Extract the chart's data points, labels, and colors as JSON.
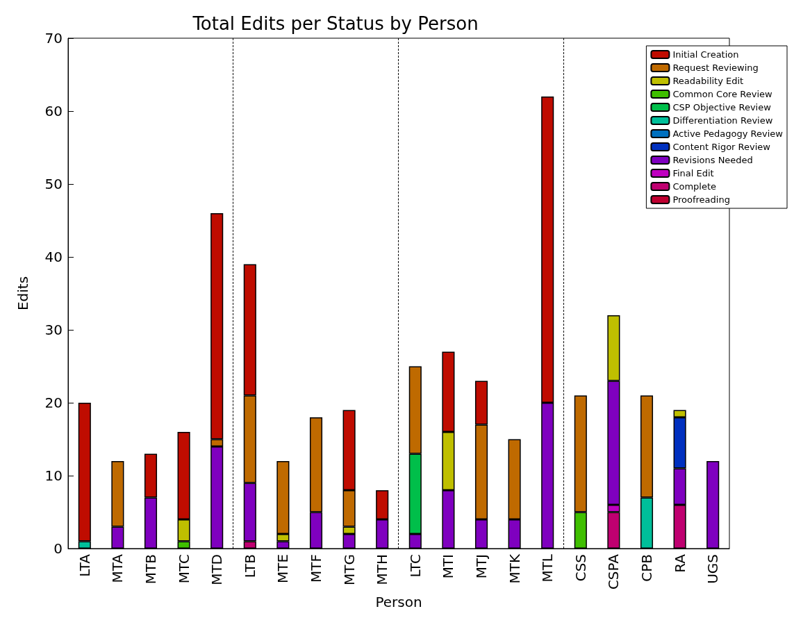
{
  "chart_data": {
    "type": "bar",
    "title": "Total Edits per Status by Person",
    "xlabel": "Person",
    "ylabel": "Edits",
    "stacked": true,
    "grid": false,
    "legend": "top right",
    "categories": [
      "LTA",
      "MTA",
      "MTB",
      "MTC",
      "MTD",
      "LTB",
      "MTE",
      "MTF",
      "MTG",
      "MTH",
      "LTC",
      "MTI",
      "MTJ",
      "MTK",
      "MTL",
      "CSS",
      "CSPA",
      "CPB",
      "RA",
      "UGS"
    ],
    "ylim": [
      0,
      70
    ],
    "yticks": [
      0,
      10,
      20,
      30,
      40,
      50,
      60,
      70
    ],
    "series": [
      {
        "name": "Proofreading",
        "color": "#bf0030",
        "values": [
          0,
          0,
          0,
          0,
          0,
          0,
          0,
          0,
          0,
          0,
          0,
          0,
          0,
          0,
          0,
          0,
          0,
          0,
          0,
          0
        ]
      },
      {
        "name": "Complete",
        "color": "#bf0070",
        "values": [
          0,
          0,
          0,
          0,
          0,
          1,
          0,
          0,
          0,
          0,
          0,
          0,
          0,
          0,
          0,
          0,
          5,
          0,
          6,
          0
        ]
      },
      {
        "name": "Final Edit",
        "color": "#bf00bf",
        "values": [
          0,
          0,
          0,
          0,
          0,
          0,
          0,
          0,
          0,
          0,
          0,
          0,
          0,
          0,
          0,
          0,
          1,
          0,
          0,
          0
        ]
      },
      {
        "name": "Revisions Needed",
        "color": "#7f00bf",
        "values": [
          0,
          3,
          7,
          0,
          14,
          8,
          1,
          5,
          2,
          4,
          2,
          8,
          4,
          4,
          20,
          0,
          17,
          0,
          5,
          12
        ]
      },
      {
        "name": "Content Rigor Review",
        "color": "#0030bf",
        "values": [
          0,
          0,
          0,
          0,
          0,
          0,
          0,
          0,
          0,
          0,
          0,
          0,
          0,
          0,
          0,
          0,
          0,
          0,
          7,
          0
        ]
      },
      {
        "name": "Active Pedagogy Review",
        "color": "#0070bf",
        "values": [
          0,
          0,
          0,
          0,
          0,
          0,
          0,
          0,
          0,
          0,
          0,
          0,
          0,
          0,
          0,
          0,
          0,
          0,
          0,
          0
        ]
      },
      {
        "name": "Differentiation Review",
        "color": "#00bf9a",
        "values": [
          1,
          0,
          0,
          0,
          0,
          0,
          0,
          0,
          0,
          0,
          0,
          0,
          0,
          0,
          0,
          0,
          0,
          7,
          0,
          0
        ]
      },
      {
        "name": "CSP Objective Review",
        "color": "#00bf4a",
        "values": [
          0,
          0,
          0,
          0,
          0,
          0,
          0,
          0,
          0,
          0,
          11,
          0,
          0,
          0,
          0,
          0,
          0,
          0,
          0,
          0
        ]
      },
      {
        "name": "Common Core Review",
        "color": "#3fbf00",
        "values": [
          0,
          0,
          0,
          1,
          0,
          0,
          0,
          0,
          0,
          0,
          0,
          0,
          0,
          0,
          0,
          5,
          0,
          0,
          0,
          0
        ]
      },
      {
        "name": "Readability Edit",
        "color": "#bfbf00",
        "values": [
          0,
          0,
          0,
          3,
          0,
          0,
          1,
          0,
          1,
          0,
          0,
          8,
          0,
          0,
          0,
          0,
          9,
          0,
          1,
          0
        ]
      },
      {
        "name": "Request Reviewing",
        "color": "#bf6a00",
        "values": [
          0,
          9,
          0,
          0,
          1,
          12,
          10,
          13,
          5,
          0,
          12,
          0,
          13,
          11,
          0,
          16,
          0,
          14,
          0,
          0
        ]
      },
      {
        "name": "Initial Creation",
        "color": "#bf0c00",
        "values": [
          19,
          0,
          6,
          12,
          31,
          18,
          0,
          0,
          11,
          4,
          0,
          11,
          6,
          0,
          42,
          0,
          0,
          0,
          0,
          0
        ]
      }
    ]
  }
}
